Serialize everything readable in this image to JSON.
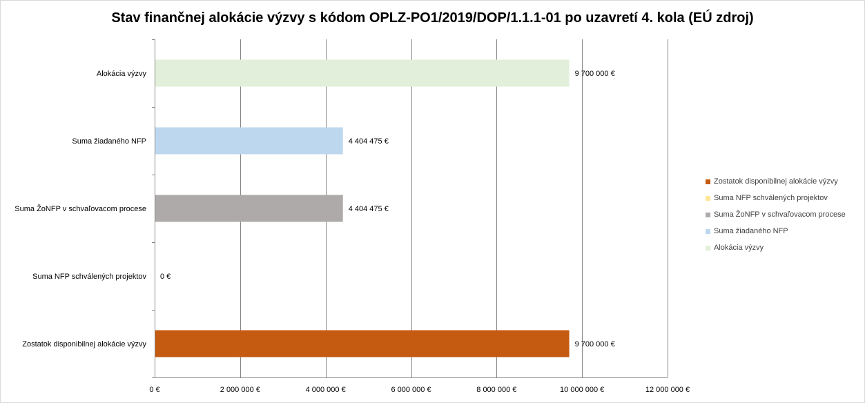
{
  "chart_data": {
    "type": "bar",
    "orientation": "horizontal",
    "title": "Stav finančnej alokácie výzvy s kódom OPLZ-PO1/2019/DOP/1.1.1-01 po uzavretí 4. kola (EÚ zdroj)",
    "categories": [
      "Alokácia výzvy",
      "Suma žiadaného NFP",
      "Suma ŽoNFP v schvaľovacom procese",
      "Suma NFP schválených projektov",
      "Zostatok disponibilnej alokácie výzvy"
    ],
    "values": [
      9700000,
      4404475,
      4404475,
      0,
      9700000
    ],
    "value_labels": [
      "9 700 000 €",
      "4 404 475 €",
      "4 404 475 €",
      "0 €",
      "9 700 000 €"
    ],
    "colors": [
      "#e2efda",
      "#bdd7ee",
      "#aeaaaa",
      "#ffe699",
      "#c55a11"
    ],
    "xlim": [
      0,
      12000000
    ],
    "x_ticks": [
      0,
      2000000,
      4000000,
      6000000,
      8000000,
      10000000,
      12000000
    ],
    "x_tick_labels": [
      "0 €",
      "2 000 000 €",
      "4 000 000 €",
      "6 000 000 €",
      "8 000 000 €",
      "10 000 000 €",
      "12 000 000 €"
    ],
    "grid": true,
    "legend_position": "right",
    "legend": [
      {
        "label": "Zostatok disponibilnej alokácie výzvy",
        "color": "#c55a11"
      },
      {
        "label": "Suma NFP schválených projektov",
        "color": "#ffe699"
      },
      {
        "label": "Suma ŽoNFP v schvaľovacom procese",
        "color": "#aeaaaa"
      },
      {
        "label": "Suma žiadaného NFP",
        "color": "#bdd7ee"
      },
      {
        "label": "Alokácia výzvy",
        "color": "#e2efda"
      }
    ]
  }
}
